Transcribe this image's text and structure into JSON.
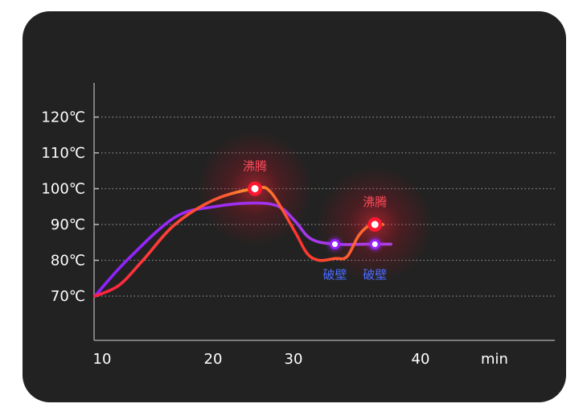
{
  "chart_data": {
    "type": "line",
    "x_ticks": [
      "10",
      "20",
      "30",
      "40"
    ],
    "x_unit_label": "min",
    "y_ticks": [
      "70℃",
      "80℃",
      "90℃",
      "100℃",
      "110℃",
      "120℃"
    ],
    "y_tick_values": [
      70,
      80,
      90,
      100,
      110,
      120
    ],
    "xlim": [
      10,
      47
    ],
    "ylim": [
      63,
      124
    ],
    "grid": true,
    "series": [
      {
        "color": "#ff2a3a",
        "points": [
          [
            10,
            70
          ],
          [
            13,
            73
          ],
          [
            16,
            80
          ],
          [
            20,
            90
          ],
          [
            25,
            97
          ],
          [
            30,
            100
          ],
          [
            32,
            99
          ],
          [
            35,
            88
          ],
          [
            36.5,
            82
          ],
          [
            38,
            80
          ],
          [
            40,
            80.5
          ],
          [
            41.5,
            81
          ],
          [
            43,
            87
          ],
          [
            44.5,
            90
          ],
          [
            46,
            90
          ]
        ]
      },
      {
        "color": "#a030ff",
        "points": [
          [
            10,
            70
          ],
          [
            14,
            80
          ],
          [
            20,
            92
          ],
          [
            25,
            95
          ],
          [
            30,
            96
          ],
          [
            33,
            95
          ],
          [
            35,
            91
          ],
          [
            37,
            86
          ],
          [
            40,
            84.5
          ],
          [
            44,
            84.5
          ],
          [
            47,
            84.5
          ]
        ]
      }
    ],
    "annotations": [
      {
        "text": "沸腾",
        "x": 30,
        "y": 100,
        "kind": "boil"
      },
      {
        "text": "沸腾",
        "x": 45,
        "y": 90,
        "kind": "boil"
      },
      {
        "text": "破壁",
        "x": 40,
        "y": 84.5,
        "kind": "break"
      },
      {
        "text": "破壁",
        "x": 45,
        "y": 84.5,
        "kind": "break"
      }
    ]
  }
}
